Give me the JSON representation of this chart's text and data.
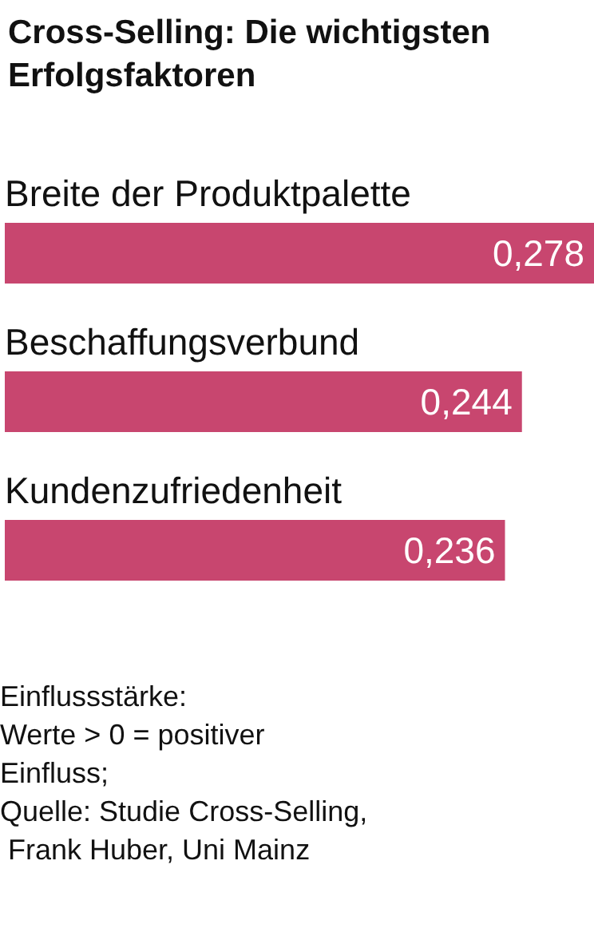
{
  "chart_data": {
    "type": "bar",
    "orientation": "horizontal",
    "title": "Cross-Selling: Die wichtigsten Erfolgsfaktoren",
    "categories": [
      "Breite der Produktpalette",
      "Beschaffungsverbund",
      "Kundenzufriedenheit"
    ],
    "values": [
      0.278,
      0.244,
      0.236
    ],
    "value_labels": [
      "0,278",
      "0,244",
      "0,236"
    ],
    "color": "#c8466f",
    "annotations": [
      "Einflussstärke:",
      "Werte > 0 = positiver Einfluss;",
      "Quelle: Studie Cross-Selling, Frank Huber, Uni Mainz"
    ]
  }
}
